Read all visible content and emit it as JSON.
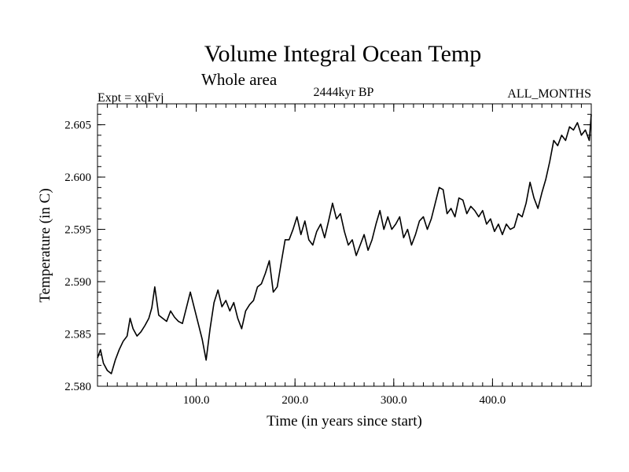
{
  "chart_data": {
    "type": "line",
    "title": "Volume Integral Ocean Temp",
    "subtitle": "Whole area",
    "header_left": "Expt = xqFvj",
    "header_center": "2444kyr BP",
    "header_right": "ALL_MONTHS",
    "xlabel": "Time (in years since start)",
    "ylabel": "Temperature (in C)",
    "xlim": [
      0,
      500
    ],
    "ylim": [
      2.58,
      2.607
    ],
    "x_ticks": [
      100,
      200,
      300,
      400
    ],
    "x_tick_labels": [
      "100.0",
      "200.0",
      "300.0",
      "400.0"
    ],
    "y_ticks": [
      2.58,
      2.585,
      2.59,
      2.595,
      2.6,
      2.605
    ],
    "y_tick_labels": [
      "2.580",
      "2.585",
      "2.590",
      "2.595",
      "2.600",
      "2.605"
    ],
    "grid": false,
    "series": [
      {
        "name": "Volume Integral Ocean Temp",
        "color": "#000000",
        "x": [
          0,
          3,
          6,
          10,
          14,
          18,
          22,
          26,
          30,
          33,
          36,
          40,
          44,
          48,
          52,
          55,
          58,
          62,
          66,
          70,
          74,
          78,
          82,
          86,
          90,
          94,
          98,
          102,
          106,
          110,
          114,
          118,
          122,
          126,
          130,
          134,
          138,
          142,
          146,
          150,
          154,
          158,
          162,
          166,
          170,
          174,
          178,
          182,
          186,
          190,
          194,
          198,
          202,
          206,
          210,
          214,
          218,
          222,
          226,
          230,
          234,
          238,
          242,
          246,
          250,
          254,
          258,
          262,
          266,
          270,
          274,
          278,
          282,
          286,
          290,
          294,
          298,
          302,
          306,
          310,
          314,
          318,
          322,
          326,
          330,
          334,
          338,
          342,
          346,
          350,
          354,
          358,
          362,
          366,
          370,
          374,
          378,
          382,
          386,
          390,
          394,
          398,
          402,
          406,
          410,
          414,
          418,
          422,
          426,
          430,
          434,
          438,
          442,
          446,
          450,
          454,
          458,
          462,
          466,
          470,
          474,
          478,
          482,
          486,
          490,
          494,
          498,
          500
        ],
        "values": [
          2.5827,
          2.5835,
          2.5822,
          2.5815,
          2.5812,
          2.5825,
          2.5835,
          2.5843,
          2.5848,
          2.5865,
          2.5855,
          2.5848,
          2.5852,
          2.5858,
          2.5865,
          2.5875,
          2.5895,
          2.5868,
          2.5865,
          2.5862,
          2.5872,
          2.5866,
          2.5862,
          2.586,
          2.5875,
          2.589,
          2.5875,
          2.586,
          2.5845,
          2.5825,
          2.5855,
          2.588,
          2.5892,
          2.5876,
          2.5882,
          2.5872,
          2.588,
          2.5865,
          2.5855,
          2.5872,
          2.5878,
          2.5882,
          2.5895,
          2.5898,
          2.5908,
          2.592,
          2.589,
          2.5895,
          2.5918,
          2.594,
          2.594,
          2.595,
          2.5962,
          2.5945,
          2.5958,
          2.594,
          2.5935,
          2.5948,
          2.5955,
          2.5942,
          2.5958,
          2.5975,
          2.596,
          2.5965,
          2.5948,
          2.5935,
          2.594,
          2.5925,
          2.5935,
          2.5945,
          2.593,
          2.594,
          2.5955,
          2.5968,
          2.595,
          2.5962,
          2.595,
          2.5955,
          2.5962,
          2.5942,
          2.595,
          2.5935,
          2.5945,
          2.5958,
          2.5962,
          2.595,
          2.596,
          2.5975,
          2.599,
          2.5988,
          2.5965,
          2.597,
          2.5962,
          2.598,
          2.5978,
          2.5965,
          2.5972,
          2.5968,
          2.5962,
          2.5968,
          2.5955,
          2.596,
          2.5948,
          2.5955,
          2.5945,
          2.5955,
          2.595,
          2.5952,
          2.5965,
          2.5962,
          2.5975,
          2.5995,
          2.598,
          2.597,
          2.5985,
          2.5998,
          2.6015,
          2.6035,
          2.603,
          2.604,
          2.6035,
          2.6048,
          2.6045,
          2.6052,
          2.604,
          2.6045,
          2.6035,
          2.606
        ]
      }
    ]
  }
}
